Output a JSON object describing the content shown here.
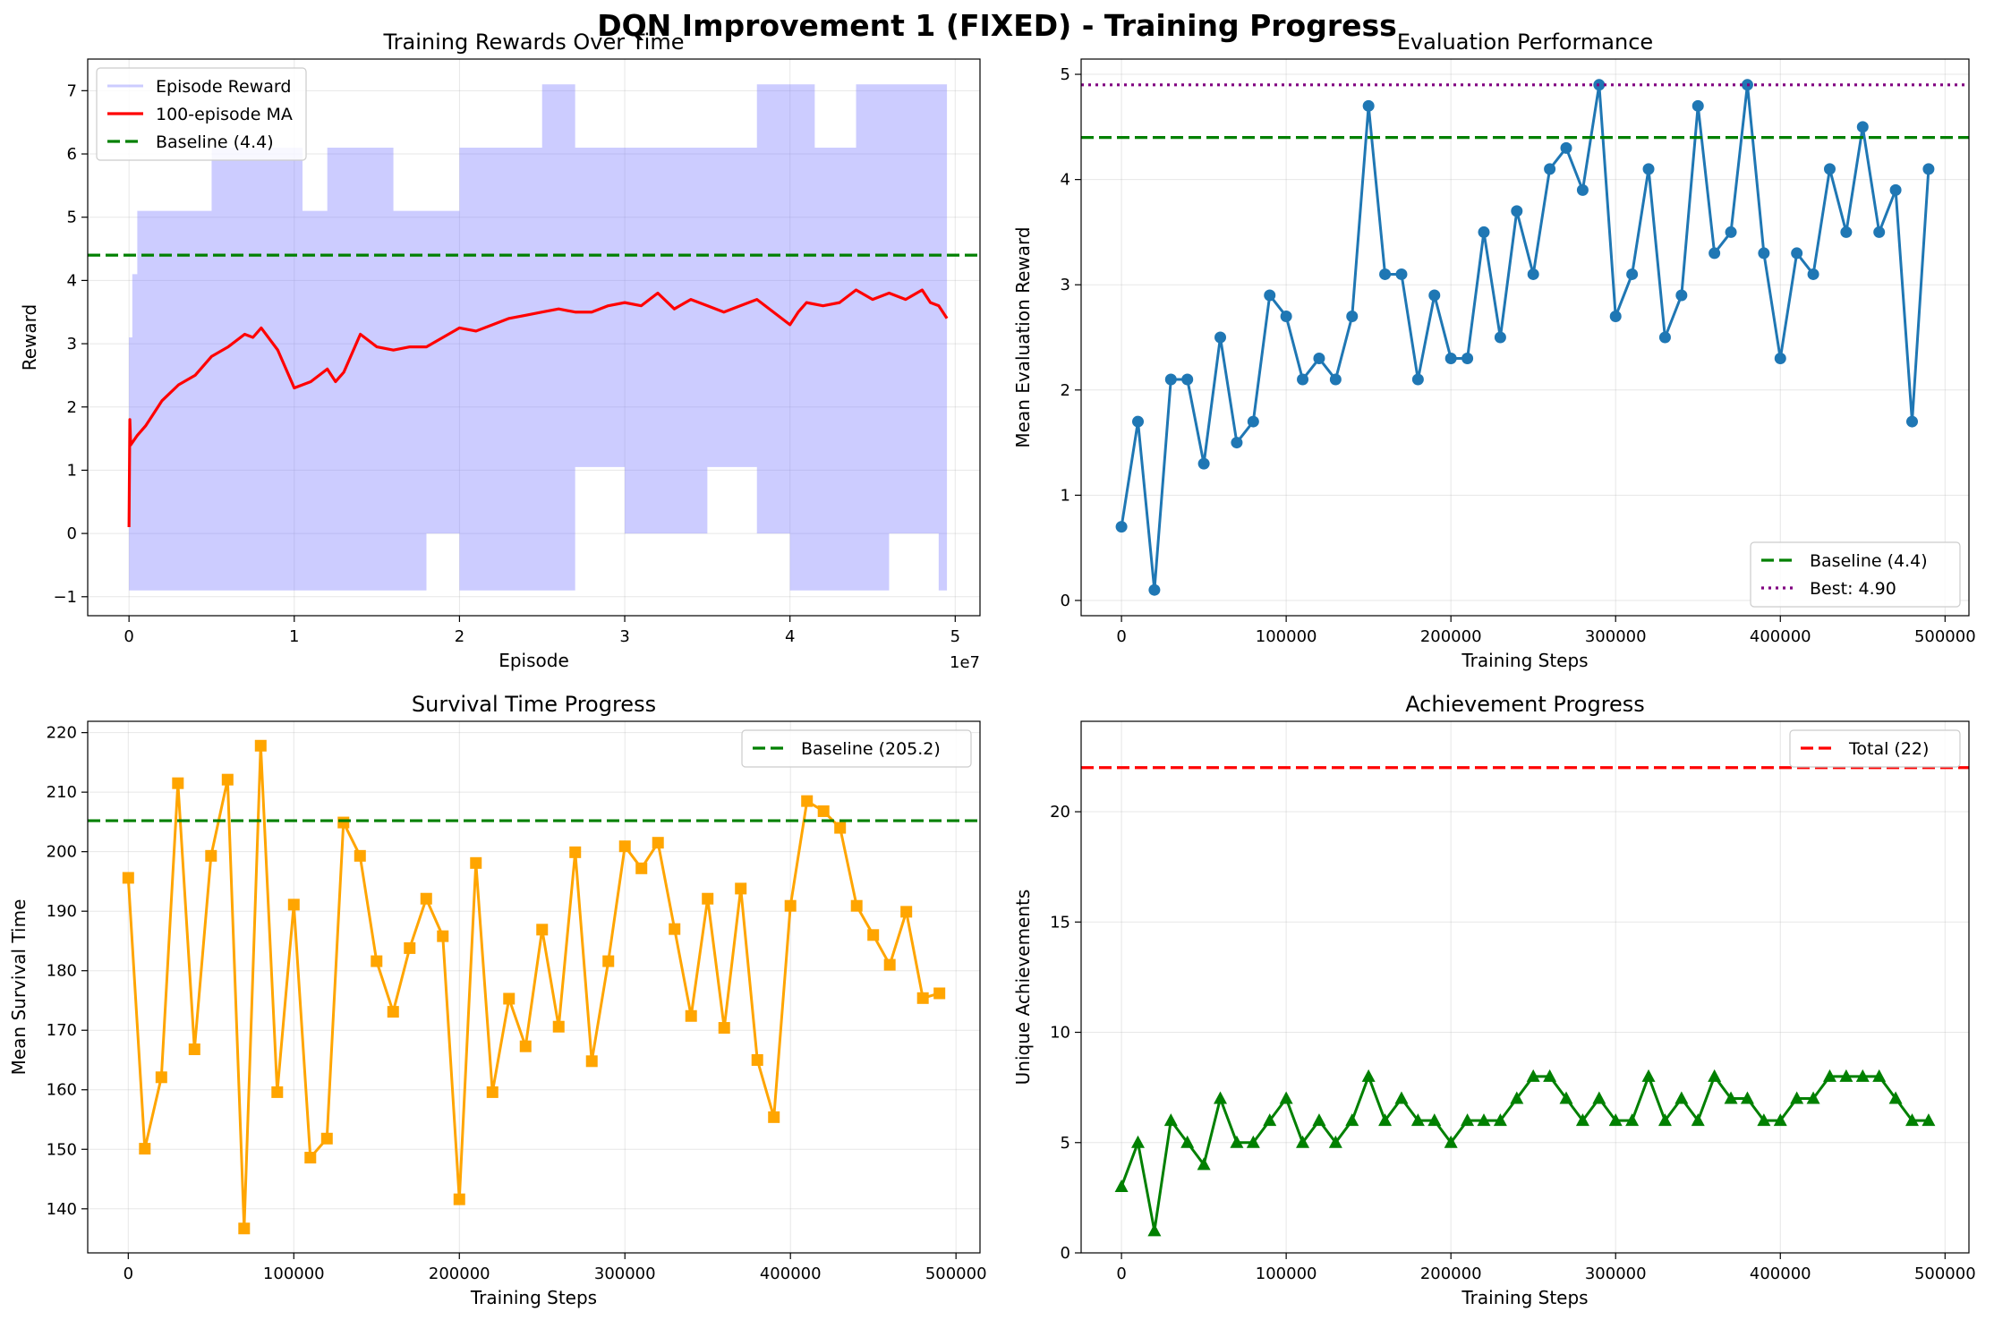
{
  "figure": {
    "title": "DQN Improvement 1 (FIXED) - Training Progress"
  },
  "chart_data": [
    {
      "type": "line",
      "title": "Training Rewards Over Time",
      "xlabel": "Episode",
      "ylabel": "Reward",
      "x_offset_label": "1e7",
      "xlim": [
        -0.25,
        5.15
      ],
      "ylim": [
        -1.3,
        7.5
      ],
      "xticks": [
        0,
        1,
        2,
        3,
        4,
        5
      ],
      "yticks": [
        -1,
        0,
        1,
        2,
        3,
        4,
        5,
        6,
        7
      ],
      "grid": true,
      "legend": {
        "position": "upper-left",
        "entries": [
          "Episode Reward",
          "100-episode MA",
          "Baseline (4.4)"
        ]
      },
      "series": [
        {
          "name": "Episode Reward",
          "style": "filled band",
          "color": "#8080ff",
          "x": [
            0,
            0.02,
            0.05,
            0.3,
            0.5,
            0.9,
            1.05,
            1.2,
            1.6,
            1.8,
            2.0,
            2.3,
            2.5,
            2.7,
            3.0,
            3.5,
            3.8,
            4.0,
            4.15,
            4.4,
            4.6,
            4.7,
            4.8,
            4.9,
            4.95
          ],
          "high": [
            3.1,
            4.1,
            5.1,
            5.1,
            6.1,
            6.1,
            5.1,
            6.1,
            5.1,
            5.1,
            6.1,
            6.1,
            7.1,
            6.1,
            6.1,
            6.1,
            7.1,
            7.1,
            6.1,
            7.1,
            7.1,
            7.1,
            7.1,
            7.1,
            6.1
          ],
          "low": [
            -0.9,
            -0.9,
            -0.9,
            -0.9,
            -0.9,
            -0.9,
            -0.9,
            -0.9,
            -0.9,
            0.0,
            -0.9,
            -0.9,
            -0.9,
            1.05,
            0.0,
            1.05,
            0.0,
            -0.9,
            -0.9,
            -0.9,
            0.0,
            0.0,
            0.0,
            -0.9,
            -0.9
          ]
        },
        {
          "name": "100-episode MA",
          "color": "#ff0000",
          "x": [
            0,
            0.005,
            0.01,
            0.05,
            0.1,
            0.15,
            0.2,
            0.3,
            0.4,
            0.5,
            0.6,
            0.7,
            0.75,
            0.8,
            0.9,
            1.0,
            1.05,
            1.1,
            1.2,
            1.25,
            1.3,
            1.4,
            1.5,
            1.6,
            1.7,
            1.8,
            1.9,
            2.0,
            2.1,
            2.2,
            2.3,
            2.4,
            2.5,
            2.6,
            2.7,
            2.8,
            2.9,
            3.0,
            3.1,
            3.2,
            3.3,
            3.4,
            3.5,
            3.6,
            3.7,
            3.8,
            3.9,
            4.0,
            4.05,
            4.1,
            4.2,
            4.3,
            4.4,
            4.5,
            4.6,
            4.7,
            4.8,
            4.85,
            4.9,
            4.95
          ],
          "values": [
            0.1,
            1.8,
            1.4,
            1.55,
            1.7,
            1.9,
            2.1,
            2.35,
            2.5,
            2.8,
            2.95,
            3.15,
            3.1,
            3.25,
            2.9,
            2.3,
            2.35,
            2.4,
            2.6,
            2.4,
            2.55,
            3.15,
            2.95,
            2.9,
            2.95,
            2.95,
            3.1,
            3.25,
            3.2,
            3.3,
            3.4,
            3.45,
            3.5,
            3.55,
            3.5,
            3.5,
            3.6,
            3.65,
            3.6,
            3.8,
            3.55,
            3.7,
            3.6,
            3.5,
            3.6,
            3.7,
            3.5,
            3.3,
            3.5,
            3.65,
            3.6,
            3.65,
            3.85,
            3.7,
            3.8,
            3.7,
            3.85,
            3.65,
            3.6,
            3.4
          ]
        }
      ],
      "hlines": [
        {
          "name": "Baseline (4.4)",
          "y": 4.4,
          "color": "#008000",
          "style": "dashed"
        }
      ]
    },
    {
      "type": "line",
      "title": "Evaluation Performance",
      "xlabel": "Training Steps",
      "ylabel": "Mean Evaluation Reward",
      "xlim": [
        -24500,
        514500
      ],
      "ylim": [
        -0.145,
        5.145
      ],
      "xticks": [
        0,
        100000,
        200000,
        300000,
        400000,
        500000
      ],
      "yticks": [
        0,
        1,
        2,
        3,
        4,
        5
      ],
      "grid": true,
      "legend": {
        "position": "lower-right",
        "entries": [
          "Baseline (4.4)",
          "Best: 4.90"
        ]
      },
      "series": [
        {
          "name": "",
          "marker": "circle",
          "color": "#1f77b4",
          "x": [
            0,
            10000,
            20000,
            30000,
            40000,
            50000,
            60000,
            70000,
            80000,
            90000,
            100000,
            110000,
            120000,
            130000,
            140000,
            150000,
            160000,
            170000,
            180000,
            190000,
            200000,
            210000,
            220000,
            230000,
            240000,
            250000,
            260000,
            270000,
            280000,
            290000,
            300000,
            310000,
            320000,
            330000,
            340000,
            350000,
            360000,
            370000,
            380000,
            390000,
            400000,
            410000,
            420000,
            430000,
            440000,
            450000,
            460000,
            470000,
            480000,
            490000
          ],
          "values": [
            0.7,
            1.7,
            0.1,
            2.1,
            2.1,
            1.3,
            2.5,
            1.5,
            1.7,
            2.9,
            2.7,
            2.1,
            2.3,
            2.1,
            2.7,
            4.7,
            3.1,
            3.1,
            2.1,
            2.9,
            2.3,
            2.3,
            3.5,
            2.5,
            3.7,
            3.1,
            4.1,
            4.3,
            3.9,
            4.9,
            2.7,
            3.1,
            4.1,
            2.5,
            2.9,
            4.7,
            3.3,
            3.5,
            4.9,
            3.3,
            2.3,
            3.3,
            3.1,
            4.1,
            3.5,
            4.5,
            3.5,
            3.9,
            1.7,
            4.1
          ]
        }
      ],
      "hlines": [
        {
          "name": "Baseline (4.4)",
          "y": 4.4,
          "color": "#008000",
          "style": "dashed"
        },
        {
          "name": "Best: 4.90",
          "y": 4.9,
          "color": "#800080",
          "style": "dotted"
        }
      ]
    },
    {
      "type": "line",
      "title": "Survival Time Progress",
      "xlabel": "Training Steps",
      "ylabel": "Mean Survival Time",
      "xlim": [
        -24500,
        514500
      ],
      "ylim": [
        132.6,
        221.9
      ],
      "xticks": [
        0,
        100000,
        200000,
        300000,
        400000,
        500000
      ],
      "yticks": [
        140,
        150,
        160,
        170,
        180,
        190,
        200,
        210,
        220
      ],
      "grid": true,
      "legend": {
        "position": "upper-right",
        "entries": [
          "Baseline (205.2)"
        ]
      },
      "series": [
        {
          "name": "",
          "marker": "square",
          "color": "#ffa500",
          "x": [
            0,
            10000,
            20000,
            30000,
            40000,
            50000,
            60000,
            70000,
            80000,
            90000,
            100000,
            110000,
            120000,
            130000,
            140000,
            150000,
            160000,
            170000,
            180000,
            190000,
            200000,
            210000,
            220000,
            230000,
            240000,
            250000,
            260000,
            270000,
            280000,
            290000,
            300000,
            310000,
            320000,
            330000,
            340000,
            350000,
            360000,
            370000,
            380000,
            390000,
            400000,
            410000,
            420000,
            430000,
            440000,
            450000,
            460000,
            470000,
            480000,
            490000
          ],
          "values": [
            195.6,
            150.1,
            162.1,
            211.5,
            166.8,
            199.3,
            212.1,
            136.7,
            217.8,
            159.6,
            191.1,
            148.6,
            151.8,
            204.9,
            199.3,
            181.6,
            173.1,
            183.8,
            192.1,
            185.8,
            141.6,
            198.1,
            159.6,
            175.3,
            167.3,
            186.9,
            170.6,
            199.9,
            164.8,
            181.6,
            200.9,
            197.2,
            201.5,
            187.0,
            172.4,
            192.1,
            170.4,
            193.8,
            165.0,
            155.4,
            190.9,
            208.5,
            206.8,
            204.0,
            190.9,
            186.0,
            181.0,
            189.9,
            175.4,
            176.2
          ]
        }
      ],
      "hlines": [
        {
          "name": "Baseline (205.2)",
          "y": 205.2,
          "color": "#008000",
          "style": "dashed"
        }
      ]
    },
    {
      "type": "line",
      "title": "Achievement Progress",
      "xlabel": "Training Steps",
      "ylabel": "Unique Achievements",
      "xlim": [
        -24500,
        514500
      ],
      "ylim": [
        0,
        24.1
      ],
      "xticks": [
        0,
        100000,
        200000,
        300000,
        400000,
        500000
      ],
      "yticks": [
        0,
        5,
        10,
        15,
        20
      ],
      "grid": true,
      "legend": {
        "position": "upper-right",
        "entries": [
          "Total (22)"
        ]
      },
      "series": [
        {
          "name": "",
          "marker": "triangle",
          "color": "#008000",
          "x": [
            0,
            10000,
            20000,
            30000,
            40000,
            50000,
            60000,
            70000,
            80000,
            90000,
            100000,
            110000,
            120000,
            130000,
            140000,
            150000,
            160000,
            170000,
            180000,
            190000,
            200000,
            210000,
            220000,
            230000,
            240000,
            250000,
            260000,
            270000,
            280000,
            290000,
            300000,
            310000,
            320000,
            330000,
            340000,
            350000,
            360000,
            370000,
            380000,
            390000,
            400000,
            410000,
            420000,
            430000,
            440000,
            450000,
            460000,
            470000,
            480000,
            490000
          ],
          "values": [
            3,
            5,
            1,
            6,
            5,
            4,
            7,
            5,
            5,
            6,
            7,
            5,
            6,
            5,
            6,
            8,
            6,
            7,
            6,
            6,
            5,
            6,
            6,
            6,
            7,
            8,
            8,
            7,
            6,
            7,
            6,
            6,
            8,
            6,
            7,
            6,
            8,
            7,
            7,
            6,
            6,
            7,
            7,
            8,
            8,
            8,
            8,
            7,
            6,
            6
          ]
        }
      ],
      "hlines": [
        {
          "name": "Total (22)",
          "y": 22,
          "color": "#ff0000",
          "style": "dashed"
        }
      ]
    }
  ]
}
